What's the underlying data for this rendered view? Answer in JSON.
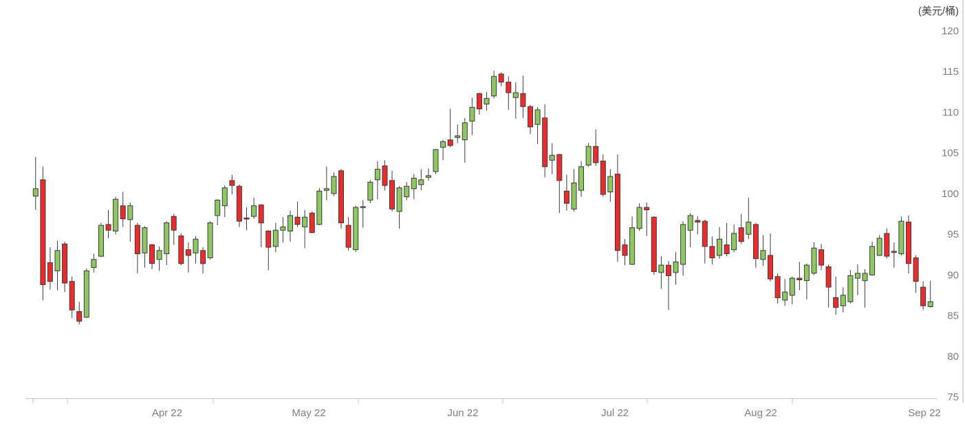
{
  "chart_data": {
    "type": "candlestick",
    "title": "",
    "unit_label": "(美元/桶)",
    "y_axis": {
      "position": "right",
      "min": 75,
      "max": 120,
      "ticks": [
        75,
        80,
        85,
        90,
        95,
        100,
        105,
        110,
        115,
        120
      ]
    },
    "x_axis": {
      "labels": [
        "Apr 22",
        "May 22",
        "Jun 22",
        "Jul 22",
        "Aug 22",
        "Sep 22"
      ],
      "label_x": [
        243,
        449,
        673,
        894,
        1106,
        1344
      ],
      "tick_x": [
        48,
        98,
        310,
        521,
        731,
        941,
        1152
      ]
    },
    "grid": "off",
    "legend": "none",
    "colors": {
      "up": "#8FC763",
      "down": "#EC2C2C",
      "outline": "#3A3A3A",
      "wick": "#3A3A3A",
      "axis_line": "#C4C4C4",
      "axis_label": "#7F7F7F",
      "unit_label": "#444444",
      "right_border": "#D9D9D9"
    },
    "candle_count": 124,
    "candles_ohlc": [
      [
        99.7,
        104.5,
        98.0,
        100.6
      ],
      [
        101.7,
        103.3,
        86.9,
        88.8
      ],
      [
        91.5,
        93.4,
        88.2,
        89.2
      ],
      [
        90.5,
        94.2,
        88.1,
        93.0
      ],
      [
        93.8,
        94.1,
        87.9,
        89.0
      ],
      [
        89.2,
        89.8,
        84.7,
        85.7
      ],
      [
        85.5,
        86.7,
        83.9,
        84.3
      ],
      [
        84.8,
        90.8,
        84.7,
        90.5
      ],
      [
        90.9,
        92.6,
        90.3,
        91.9
      ],
      [
        92.3,
        96.4,
        92.2,
        96.1
      ],
      [
        96.2,
        98.0,
        94.5,
        95.5
      ],
      [
        95.4,
        99.6,
        95.0,
        99.3
      ],
      [
        98.5,
        100.2,
        95.9,
        96.9
      ],
      [
        96.8,
        98.9,
        94.1,
        98.5
      ],
      [
        96.1,
        96.4,
        90.2,
        92.6
      ],
      [
        92.7,
        96.0,
        90.9,
        95.8
      ],
      [
        93.7,
        93.8,
        90.7,
        91.4
      ],
      [
        91.9,
        93.5,
        90.5,
        93.0
      ],
      [
        92.6,
        96.6,
        91.2,
        96.4
      ],
      [
        97.2,
        97.5,
        93.7,
        95.5
      ],
      [
        94.8,
        95.1,
        91.2,
        91.4
      ],
      [
        93.1,
        94.0,
        90.3,
        92.4
      ],
      [
        92.7,
        94.8,
        91.4,
        94.4
      ],
      [
        93.0,
        93.4,
        90.2,
        91.4
      ],
      [
        92.1,
        96.6,
        91.9,
        96.4
      ],
      [
        97.3,
        99.3,
        96.1,
        99.2
      ],
      [
        98.5,
        101.0,
        97.1,
        100.7
      ],
      [
        101.6,
        102.3,
        99.9,
        101.0
      ],
      [
        100.9,
        101.1,
        95.9,
        96.6
      ],
      [
        97.0,
        98.3,
        95.5,
        96.9
      ],
      [
        97.2,
        99.5,
        96.9,
        98.5
      ],
      [
        98.6,
        98.7,
        93.4,
        96.4
      ],
      [
        95.4,
        95.5,
        90.6,
        93.4
      ],
      [
        93.5,
        96.4,
        92.8,
        95.5
      ],
      [
        95.5,
        97.1,
        94.0,
        95.9
      ],
      [
        95.4,
        97.9,
        94.1,
        97.3
      ],
      [
        97.1,
        99.0,
        95.9,
        96.2
      ],
      [
        95.9,
        98.0,
        93.3,
        97.1
      ],
      [
        97.6,
        97.8,
        95.1,
        95.2
      ],
      [
        96.2,
        100.7,
        96.1,
        100.3
      ],
      [
        100.4,
        103.3,
        99.2,
        100.6
      ],
      [
        100.0,
        102.6,
        99.7,
        102.1
      ],
      [
        102.8,
        103.0,
        95.7,
        96.4
      ],
      [
        96.1,
        97.1,
        93.0,
        93.4
      ],
      [
        93.1,
        98.5,
        92.8,
        98.3
      ],
      [
        98.3,
        99.2,
        95.8,
        98.4
      ],
      [
        99.2,
        101.7,
        98.8,
        101.4
      ],
      [
        101.7,
        104.0,
        99.3,
        103.0
      ],
      [
        103.4,
        104.1,
        100.4,
        101.0
      ],
      [
        101.6,
        102.8,
        97.8,
        98.1
      ],
      [
        97.8,
        100.9,
        95.7,
        100.7
      ],
      [
        99.6,
        101.4,
        99.2,
        100.9
      ],
      [
        100.6,
        102.4,
        99.3,
        101.9
      ],
      [
        101.1,
        103.0,
        100.4,
        101.7
      ],
      [
        102.0,
        103.1,
        101.6,
        102.2
      ],
      [
        102.7,
        105.5,
        102.4,
        105.4
      ],
      [
        105.7,
        106.6,
        104.1,
        106.4
      ],
      [
        106.6,
        110.4,
        105.7,
        105.9
      ],
      [
        106.9,
        108.5,
        106.2,
        107.1
      ],
      [
        106.6,
        109.3,
        103.8,
        108.7
      ],
      [
        108.9,
        111.8,
        107.2,
        110.6
      ],
      [
        112.3,
        112.4,
        109.7,
        110.4
      ],
      [
        111.0,
        112.5,
        110.2,
        111.7
      ],
      [
        112.0,
        115.1,
        111.7,
        114.4
      ],
      [
        114.7,
        114.9,
        113.2,
        113.7
      ],
      [
        113.7,
        114.4,
        110.3,
        112.4
      ],
      [
        111.8,
        113.7,
        109.2,
        112.4
      ],
      [
        112.3,
        114.5,
        109.3,
        110.7
      ],
      [
        110.7,
        110.9,
        107.3,
        108.2
      ],
      [
        108.5,
        110.6,
        106.1,
        110.3
      ],
      [
        109.3,
        111.0,
        102.0,
        103.3
      ],
      [
        104.1,
        106.2,
        102.4,
        104.7
      ],
      [
        104.8,
        104.9,
        97.6,
        101.6
      ],
      [
        100.3,
        102.3,
        97.9,
        98.8
      ],
      [
        98.1,
        103.0,
        97.8,
        101.3
      ],
      [
        100.4,
        104.0,
        99.6,
        103.3
      ],
      [
        103.5,
        106.2,
        103.3,
        105.8
      ],
      [
        105.8,
        107.9,
        103.4,
        103.8
      ],
      [
        104.0,
        104.8,
        99.6,
        99.9
      ],
      [
        100.2,
        103.0,
        99.0,
        102.1
      ],
      [
        102.4,
        104.8,
        91.6,
        93.0
      ],
      [
        93.7,
        94.4,
        91.2,
        92.4
      ],
      [
        91.3,
        97.2,
        91.2,
        95.8
      ],
      [
        95.7,
        98.8,
        95.4,
        98.3
      ],
      [
        98.3,
        98.9,
        94.8,
        98.0
      ],
      [
        97.1,
        97.2,
        90.0,
        90.4
      ],
      [
        90.3,
        92.3,
        88.3,
        91.2
      ],
      [
        91.2,
        91.7,
        85.7,
        89.9
      ],
      [
        90.3,
        92.8,
        88.8,
        91.6
      ],
      [
        91.3,
        96.6,
        89.9,
        96.2
      ],
      [
        95.5,
        97.6,
        93.4,
        97.3
      ],
      [
        96.7,
        97.2,
        95.0,
        96.5
      ],
      [
        96.6,
        96.8,
        91.4,
        93.5
      ],
      [
        93.5,
        94.7,
        91.3,
        92.1
      ],
      [
        92.4,
        95.9,
        92.0,
        94.4
      ],
      [
        93.7,
        96.4,
        92.3,
        92.6
      ],
      [
        93.1,
        96.2,
        92.8,
        95.1
      ],
      [
        95.8,
        97.5,
        93.8,
        94.1
      ],
      [
        95.0,
        99.5,
        94.4,
        96.5
      ],
      [
        96.2,
        96.4,
        90.9,
        92.0
      ],
      [
        91.9,
        94.9,
        91.1,
        93.0
      ],
      [
        92.4,
        95.1,
        89.2,
        89.5
      ],
      [
        89.8,
        90.2,
        86.5,
        87.2
      ],
      [
        86.9,
        89.5,
        86.2,
        87.9
      ],
      [
        87.5,
        89.8,
        86.4,
        89.6
      ],
      [
        89.6,
        91.6,
        88.1,
        89.4
      ],
      [
        89.3,
        91.4,
        87.0,
        91.2
      ],
      [
        90.2,
        94.0,
        90.0,
        93.3
      ],
      [
        93.1,
        93.8,
        90.6,
        91.2
      ],
      [
        91.0,
        91.3,
        86.0,
        88.5
      ],
      [
        87.2,
        89.8,
        85.1,
        86.0
      ],
      [
        86.2,
        88.5,
        85.4,
        87.5
      ],
      [
        86.7,
        90.6,
        86.5,
        89.9
      ],
      [
        89.6,
        91.3,
        87.5,
        90.2
      ],
      [
        89.3,
        90.7,
        86.0,
        90.2
      ],
      [
        90.0,
        94.1,
        89.9,
        93.5
      ],
      [
        92.4,
        94.9,
        92.4,
        94.5
      ],
      [
        95.1,
        95.7,
        92.0,
        92.3
      ],
      [
        92.9,
        94.0,
        90.9,
        92.8
      ],
      [
        92.6,
        97.2,
        92.4,
        96.6
      ],
      [
        96.5,
        97.3,
        90.2,
        91.4
      ],
      [
        92.1,
        92.4,
        87.8,
        89.2
      ],
      [
        88.5,
        89.2,
        85.7,
        86.2
      ],
      [
        86.1,
        89.3,
        86.0,
        86.7
      ]
    ]
  }
}
